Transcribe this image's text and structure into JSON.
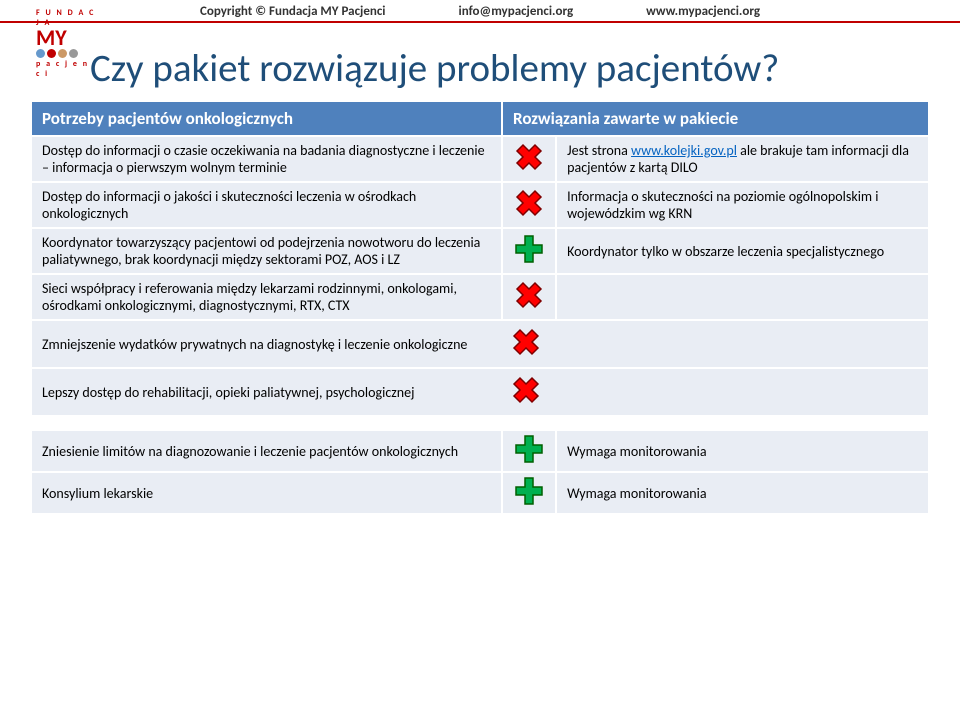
{
  "header": {
    "copyright": "Copyright © Fundacja MY Pacjenci",
    "email": "info@mypacjenci.org",
    "website": "www.mypacjenci.org"
  },
  "logo": {
    "top": "F U N D A C J A",
    "main": "MY",
    "bottom": "p a c j e n c i"
  },
  "title": "Czy pakiet rozwiązuje problemy pacjentów?",
  "table": {
    "header_left": "Potrzeby pacjentów onkologicznych",
    "header_right": "Rozwiązania zawarte w pakiecie",
    "rows": [
      {
        "left": "Dostęp do informacji o czasie oczekiwania na badania diagnostyczne i leczenie – informacja o pierwszym wolnym terminie",
        "icon": "x",
        "right_prefix": "Jest strona ",
        "right_link": "www.kolejki.gov.pl",
        "right_suffix": " ale brakuje tam informacji dla pacjentów z kartą DILO"
      },
      {
        "left": "Dostęp do informacji o jakości i skuteczności leczenia w ośrodkach onkologicznych",
        "icon": "x",
        "right": "Informacja o skuteczności na poziomie ogólnopolskim i wojewódzkim wg KRN"
      },
      {
        "left": "Koordynator towarzyszący pacjentowi od podejrzenia nowotworu do leczenia paliatywnego, brak koordynacji między sektorami POZ, AOS i LZ",
        "icon": "plus",
        "right": "Koordynator tylko w obszarze leczenia specjalistycznego"
      },
      {
        "left": "Sieci współpracy i referowania między lekarzami rodzinnymi, onkologami, ośrodkami onkologicznymi, diagnostycznymi, RTX, CTX",
        "icon": "x",
        "right": ""
      },
      {
        "left": "Zmniejszenie wydatków prywatnych na diagnostykę i leczenie onkologiczne",
        "icon": "x",
        "right": ""
      },
      {
        "left": "Lepszy dostęp do rehabilitacji, opieki paliatywnej, psychologicznej",
        "icon": "x",
        "right": ""
      }
    ],
    "rows2": [
      {
        "left": "Zniesienie limitów na diagnozowanie i leczenie pacjentów onkologicznych",
        "icon": "plus",
        "right": "Wymaga monitorowania"
      },
      {
        "left": "Konsylium lekarskie",
        "icon": "plus",
        "right": "Wymaga monitorowania"
      }
    ]
  },
  "colors": {
    "accent_red": "#c00000",
    "header_blue": "#4f81bd",
    "cell_bg": "#e9edf4",
    "title_color": "#1f4e79",
    "link": "#0563c1",
    "x_fill": "#ff0000",
    "x_border": "#7f0000",
    "plus_fill": "#00b050",
    "plus_border": "#006000"
  },
  "font_sizes": {
    "header_bar": 13,
    "title": 39,
    "th": 17,
    "td": 14
  }
}
